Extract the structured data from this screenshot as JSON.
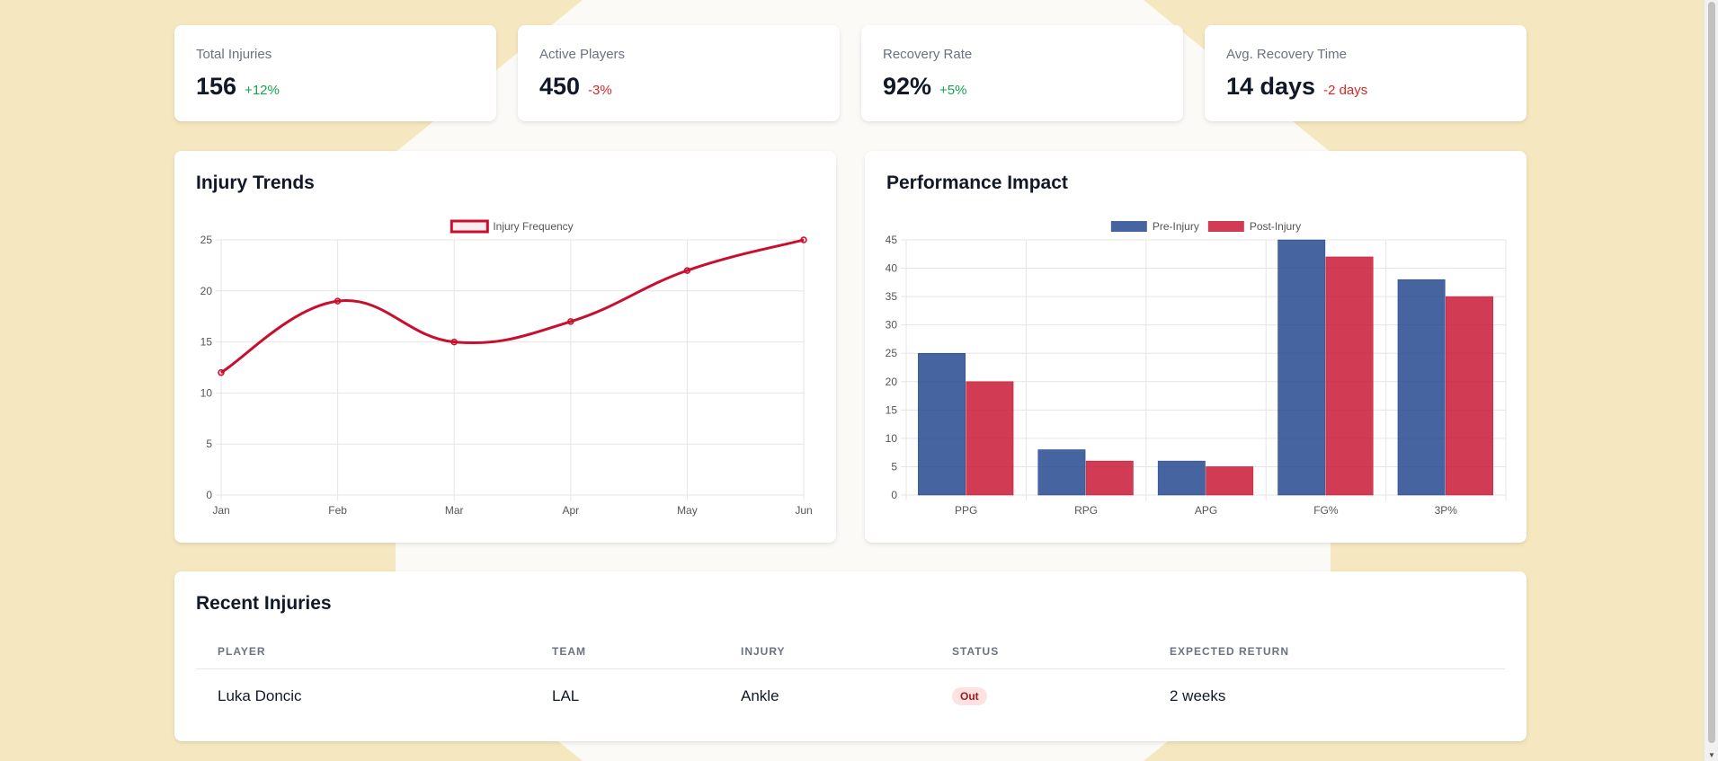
{
  "stats": [
    {
      "label": "Total Injuries",
      "value": "156",
      "change": "+12%",
      "trend": "positive"
    },
    {
      "label": "Active Players",
      "value": "450",
      "change": "-3%",
      "trend": "negative"
    },
    {
      "label": "Recovery Rate",
      "value": "92%",
      "change": "+5%",
      "trend": "positive"
    },
    {
      "label": "Avg. Recovery Time",
      "value": "14 days",
      "change": "-2 days",
      "trend": "negative"
    }
  ],
  "trends": {
    "title": "Injury Trends"
  },
  "impact": {
    "title": "Performance Impact"
  },
  "colors": {
    "line": "#c8102e",
    "pre": "#1d428a",
    "post": "#c8102e"
  },
  "chart_data": [
    {
      "type": "line",
      "x": [
        "Jan",
        "Feb",
        "Mar",
        "Apr",
        "May",
        "Jun"
      ],
      "series": [
        {
          "name": "Injury Frequency",
          "values": [
            12,
            19,
            15,
            17,
            22,
            25
          ]
        }
      ],
      "ylim": [
        0,
        25
      ],
      "yticks": [
        0,
        5,
        10,
        15,
        20,
        25
      ],
      "grid": true,
      "legend": "top-center"
    },
    {
      "type": "bar",
      "categories": [
        "PPG",
        "RPG",
        "APG",
        "FG%",
        "3P%"
      ],
      "series": [
        {
          "name": "Pre-Injury",
          "values": [
            25,
            8,
            6,
            45,
            38
          ]
        },
        {
          "name": "Post-Injury",
          "values": [
            20,
            6,
            5,
            42,
            35
          ]
        }
      ],
      "ylim": [
        0,
        45
      ],
      "yticks": [
        0,
        5,
        10,
        15,
        20,
        25,
        30,
        35,
        40,
        45
      ],
      "grid": true,
      "legend": "top-center"
    }
  ],
  "recent": {
    "title": "Recent Injuries",
    "columns": [
      "PLAYER",
      "TEAM",
      "INJURY",
      "STATUS",
      "EXPECTED RETURN"
    ],
    "rows": [
      {
        "player": "Luka Doncic",
        "team": "LAL",
        "injury": "Ankle",
        "status": "Out",
        "return": "2 weeks"
      }
    ]
  }
}
